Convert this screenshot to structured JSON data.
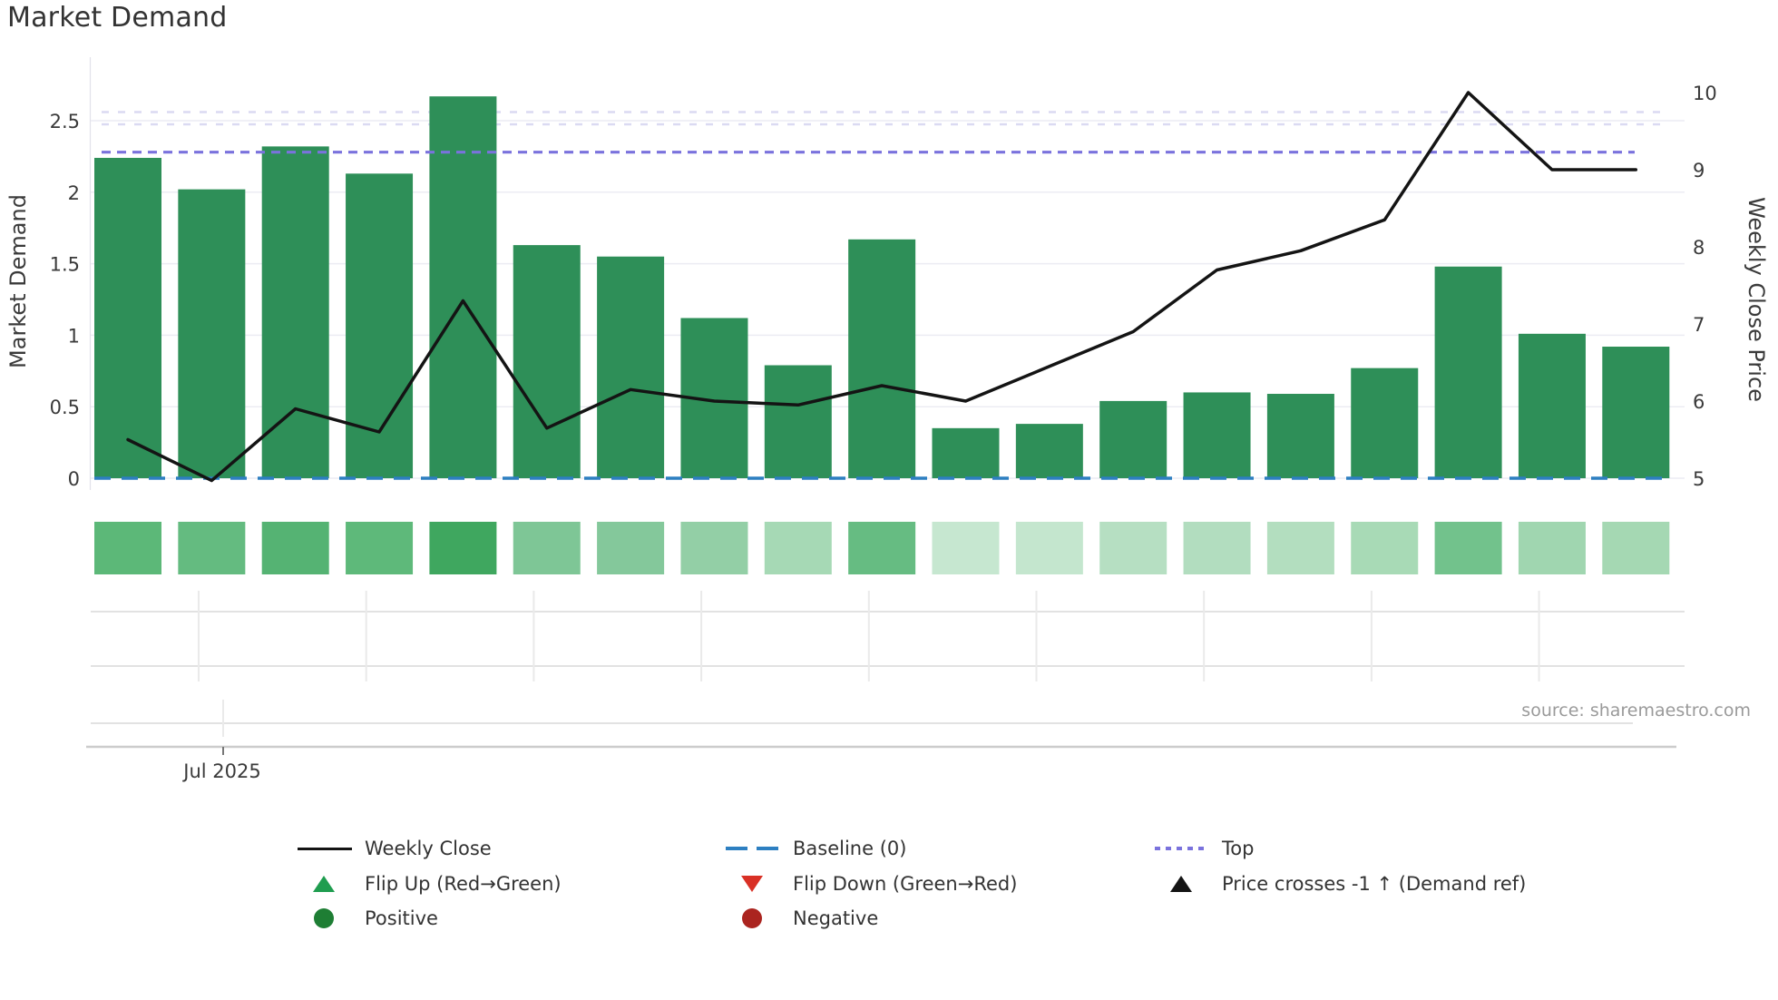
{
  "header": {
    "title": "Market Demand"
  },
  "axes": {
    "left": {
      "label": "Market Demand",
      "tick_labels": [
        "0",
        "0.5",
        "1",
        "1.5",
        "2",
        "2.5"
      ]
    },
    "right": {
      "label": "Weekly Close Price",
      "tick_labels": [
        "5",
        "6",
        "7",
        "8",
        "9",
        "10"
      ]
    },
    "x": {
      "tick_label": "Jul 2025"
    }
  },
  "source_note": "source: sharemaestro.com",
  "legend": {
    "columns": [
      {
        "items": [
          {
            "swatch": "line-solid-black",
            "label": "Weekly Close"
          },
          {
            "swatch": "triangle-up-green",
            "label": "Flip Up (Red→Green)"
          },
          {
            "swatch": "circle-green",
            "label": "Positive"
          }
        ]
      },
      {
        "items": [
          {
            "swatch": "line-dashed-blue",
            "label": "Baseline (0)"
          },
          {
            "swatch": "triangle-down-red",
            "label": "Flip Down (Green→Red)"
          },
          {
            "swatch": "circle-darkred",
            "label": "Negative"
          }
        ]
      },
      {
        "items": [
          {
            "swatch": "line-dotted-purple",
            "label": "Top"
          },
          {
            "swatch": "triangle-up-black",
            "label": "Price crosses -1 ↑ (Demand ref)"
          }
        ]
      }
    ]
  },
  "colors": {
    "bar_green": "#2e8f58",
    "line_black": "#141414",
    "baseline_blue": "#2d7fc1",
    "top_purple": "#7a72dd",
    "faint_dotted": "#dbdaf2",
    "grid": "#ececf3",
    "subgrid": "#e2e2e2",
    "subgrid_vertical": "#eaeaea",
    "axis_line": "#cccccc",
    "spine": "#e2e2ea",
    "tick_text": "#3a3a3a",
    "muted_text": "#9a9a9a"
  },
  "chart_data": {
    "type": "bar",
    "title": "Market Demand",
    "weeks": 19,
    "x_tick_labels": [
      {
        "label": "Jul 2025",
        "bar_index": 2
      }
    ],
    "series": [
      {
        "name": "Market Demand",
        "type": "bar",
        "axis": "left",
        "values": [
          2.24,
          2.02,
          2.32,
          2.13,
          2.67,
          1.63,
          1.55,
          1.12,
          0.79,
          1.67,
          0.35,
          0.38,
          0.54,
          0.6,
          0.59,
          0.77,
          1.48,
          1.01,
          0.92
        ]
      },
      {
        "name": "Weekly Close",
        "type": "line",
        "axis": "right",
        "values": [
          5.5,
          4.97,
          5.9,
          5.6,
          7.3,
          5.65,
          6.15,
          6.0,
          5.95,
          6.2,
          6.0,
          6.45,
          6.9,
          7.7,
          7.95,
          8.35,
          10.0,
          9.0,
          9.0
        ]
      }
    ],
    "reference_lines": [
      {
        "name": "Top",
        "axis": "left",
        "value": 2.28,
        "style": "dotted"
      },
      {
        "name": "Baseline (0)",
        "axis": "left",
        "value": 0,
        "style": "dashed"
      }
    ],
    "heatmap_row_colors": [
      "#5cb878",
      "#64bb80",
      "#55b373",
      "#5eb97a",
      "#3fa75f",
      "#7ec696",
      "#84c89b",
      "#93cfa6",
      "#a6d9b5",
      "#66bc82",
      "#c6e7d0",
      "#c4e6ce",
      "#b6dfc2",
      "#b2ddbf",
      "#b3debf",
      "#a8dab6",
      "#72c28c",
      "#a0d6b0",
      "#a5d8b3"
    ],
    "left_axis": {
      "label": "Market Demand",
      "ticks": [
        0,
        0.5,
        1,
        1.5,
        2,
        2.5
      ],
      "range": [
        0,
        2.95
      ]
    },
    "right_axis": {
      "label": "Weekly Close Price",
      "ticks": [
        5,
        6,
        7,
        8,
        9,
        10
      ],
      "range": [
        5,
        10
      ]
    },
    "grid": true,
    "legend_position": "bottom"
  }
}
